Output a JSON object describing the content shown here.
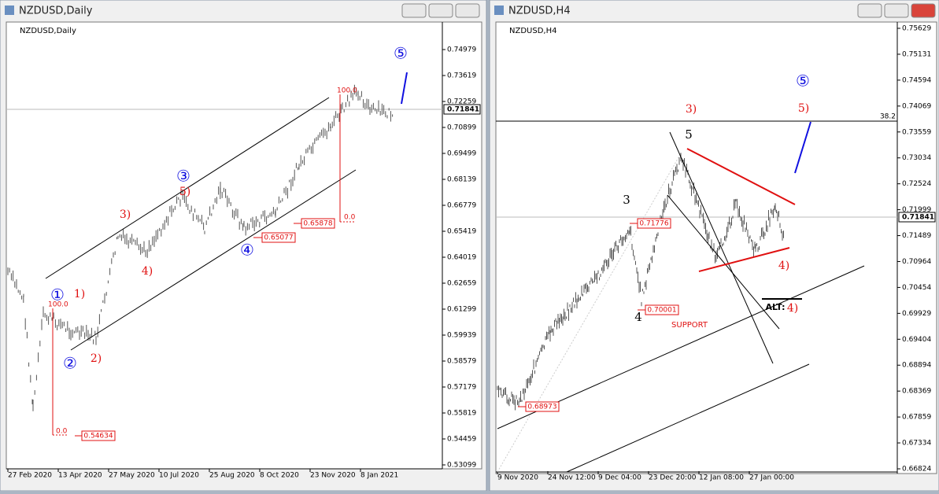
{
  "windows": [
    {
      "title": "NZDUSD,Daily",
      "symbol_label": "NZDUSD,Daily",
      "price_labels": [
        "0.74979",
        "0.73619",
        "0.72259",
        "0.70899",
        "0.69499",
        "0.68139",
        "0.66779",
        "0.65419",
        "0.64019",
        "0.62659",
        "0.61299",
        "0.59939",
        "0.58579",
        "0.57179",
        "0.55819",
        "0.54459",
        "0.53099"
      ],
      "current_price": "0.71841",
      "date_labels": [
        "27 Feb 2020",
        "13 Apr 2020",
        "27 May 2020",
        "10 Jul 2020",
        "25 Aug 2020",
        "8 Oct 2020",
        "23 Nov 2020",
        "8 Jan 2021"
      ],
      "annotations": {
        "wave_1": "①",
        "wave_2": "②",
        "wave_3": "③",
        "wave_4": "④",
        "wave_5": "⑤",
        "sub_1": "1)",
        "sub_2": "2)",
        "sub_3": "3)",
        "sub_4": "4)",
        "sub_5": "5)",
        "fib_100_a": "100.0",
        "fib_0_a": "0.0",
        "fib_100_b": "100.0",
        "fib_0_b": "0.0",
        "level_a": "0.54634",
        "level_b": "0.65077",
        "level_c": "0.65878"
      }
    },
    {
      "title": "NZDUSD,H4",
      "symbol_label": "NZDUSD,H4",
      "price_labels": [
        "0.75629",
        "0.75131",
        "0.74594",
        "0.74069",
        "0.73559",
        "0.73034",
        "0.72524",
        "0.71999",
        "0.71489",
        "0.70964",
        "0.70454",
        "0.69929",
        "0.69404",
        "0.68894",
        "0.68369",
        "0.67859",
        "0.67334",
        "0.66824"
      ],
      "current_price": "0.71841",
      "date_labels": [
        "9 Nov 2020",
        "24 Nov 12:00",
        "9 Dec 04:00",
        "23 Dec 20:00",
        "12 Jan 08:00",
        "27 Jan 00:00"
      ],
      "annotations": {
        "sub_3": "3)",
        "sub_5": "5)",
        "wave_5": "⑤",
        "black_5": "5",
        "black_3": "3",
        "black_4": "4",
        "level_a": "0.71776",
        "level_b": "0.70001",
        "support": "SUPPORT",
        "sub_4": "4)",
        "alt": "ALT:",
        "alt_4": "4)",
        "fib": "38.2",
        "level_c": "0.68973"
      }
    }
  ]
}
